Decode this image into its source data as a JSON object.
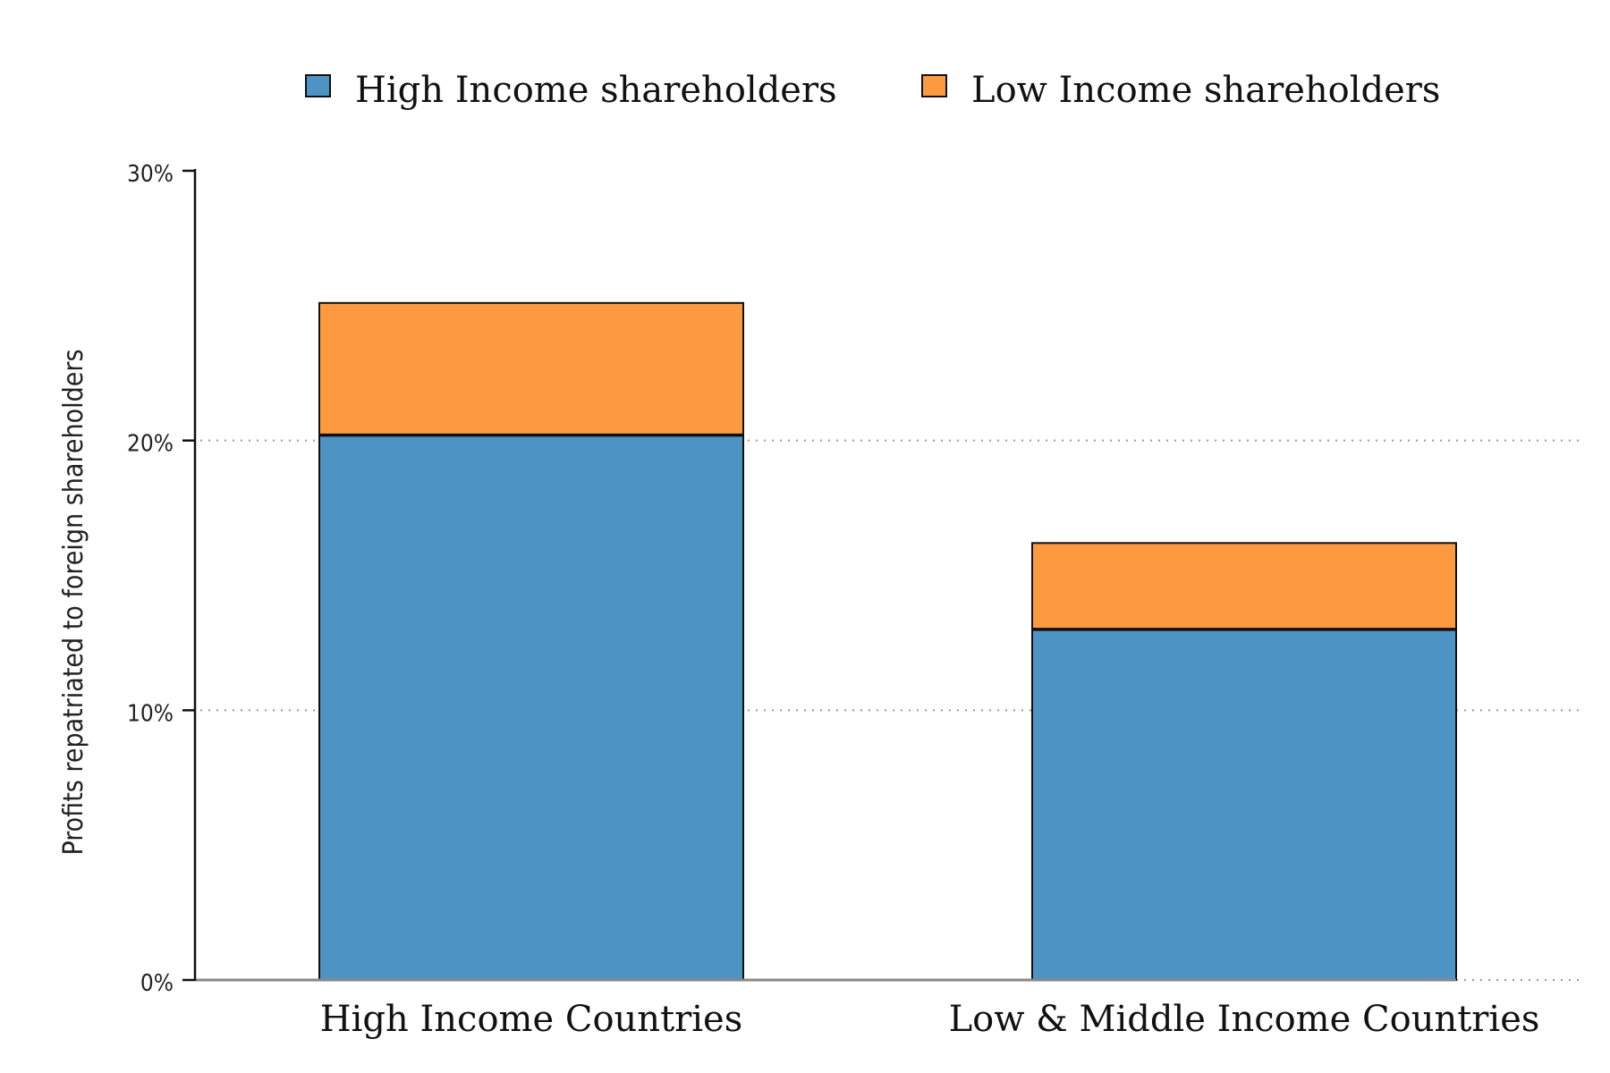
{
  "chart_data": {
    "type": "bar",
    "stacked": true,
    "categories": [
      "High Income Countries",
      "Low & Middle Income Countries"
    ],
    "series": [
      {
        "name": "High Income shareholders",
        "color": "#4d93c4",
        "values": [
          20.2,
          13.0
        ]
      },
      {
        "name": "Low Income shareholders",
        "color": "#fd9a3f",
        "values": [
          4.9,
          3.2
        ]
      }
    ],
    "ylabel": "Profits repatriated to foreign shareholders",
    "ylim": [
      0,
      30
    ],
    "yticks": [
      0,
      10,
      20,
      30
    ],
    "ytick_labels": [
      "0%",
      "10%",
      "20%",
      "30%"
    ],
    "grid": "horizontal dotted",
    "legend": "top"
  }
}
